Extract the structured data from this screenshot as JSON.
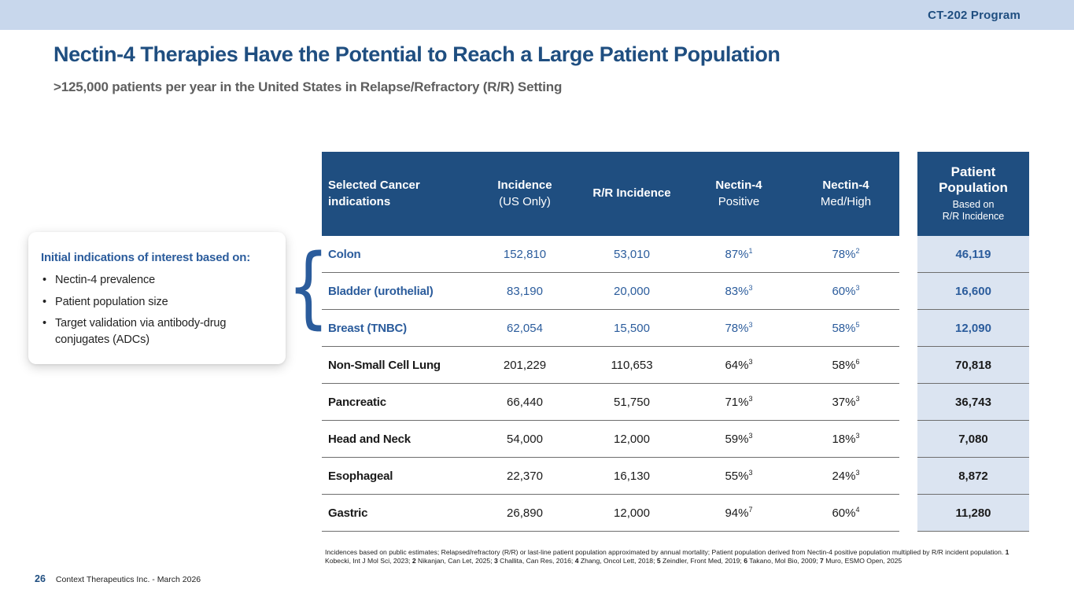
{
  "colors": {
    "dark_blue": "#1f4e80",
    "row_blue": "#2b5c9c",
    "topbar_bg": "#c8d7ec",
    "cell_bg": "#dbe4f1",
    "subtitle_gray": "#5f5f5f",
    "text_black": "#1a1a1a",
    "divider": "#6e6e6e"
  },
  "topbar": {
    "program_label": "CT-202 Program"
  },
  "header": {
    "title": "Nectin-4 Therapies Have the Potential to Reach a Large Patient Population",
    "subtitle": ">125,000 patients per year in the United States in Relapse/Refractory (R/R) Setting"
  },
  "callout": {
    "title": "Initial indications of interest based on:",
    "bullet_glyph": "•",
    "bullets": [
      "Nectin-4 prevalence",
      "Patient population size",
      "Target validation via antibody-drug conjugates (ADCs)"
    ]
  },
  "brace_glyph": "{",
  "table": {
    "columns": [
      {
        "label": "Selected Cancer indications",
        "sub": ""
      },
      {
        "label": "Incidence",
        "sub": "(US Only)"
      },
      {
        "label": "R/R Incidence",
        "sub": ""
      },
      {
        "label": "Nectin-4",
        "sub": "Positive"
      },
      {
        "label": "Nectin-4",
        "sub": "Med/High"
      }
    ],
    "rows": [
      {
        "indication": "Colon",
        "incidence": "152,810",
        "rr_incidence": "53,010",
        "nectin4_positive": "87%",
        "positive_ref": "1",
        "nectin4_medhigh": "78%",
        "medhigh_ref": "2",
        "patient_population": "46,119",
        "highlighted": true
      },
      {
        "indication": "Bladder (urothelial)",
        "incidence": "83,190",
        "rr_incidence": "20,000",
        "nectin4_positive": "83%",
        "positive_ref": "3",
        "nectin4_medhigh": "60%",
        "medhigh_ref": "3",
        "patient_population": "16,600",
        "highlighted": true
      },
      {
        "indication": "Breast (TNBC)",
        "incidence": "62,054",
        "rr_incidence": "15,500",
        "nectin4_positive": "78%",
        "positive_ref": "3",
        "nectin4_medhigh": "58%",
        "medhigh_ref": "5",
        "patient_population": "12,090",
        "highlighted": true
      },
      {
        "indication": "Non-Small Cell Lung",
        "incidence": "201,229",
        "rr_incidence": "110,653",
        "nectin4_positive": "64%",
        "positive_ref": "3",
        "nectin4_medhigh": "58%",
        "medhigh_ref": "6",
        "patient_population": "70,818",
        "highlighted": false
      },
      {
        "indication": "Pancreatic",
        "incidence": "66,440",
        "rr_incidence": "51,750",
        "nectin4_positive": "71%",
        "positive_ref": "3",
        "nectin4_medhigh": "37%",
        "medhigh_ref": "3",
        "patient_population": "36,743",
        "highlighted": false
      },
      {
        "indication": "Head and Neck",
        "incidence": "54,000",
        "rr_incidence": "12,000",
        "nectin4_positive": "59%",
        "positive_ref": "3",
        "nectin4_medhigh": "18%",
        "medhigh_ref": "3",
        "patient_population": "7,080",
        "highlighted": false
      },
      {
        "indication": "Esophageal",
        "incidence": "22,370",
        "rr_incidence": "16,130",
        "nectin4_positive": "55%",
        "positive_ref": "3",
        "nectin4_medhigh": "24%",
        "medhigh_ref": "3",
        "patient_population": "8,872",
        "highlighted": false
      },
      {
        "indication": "Gastric",
        "incidence": "26,890",
        "rr_incidence": "12,000",
        "nectin4_positive": "94%",
        "positive_ref": "7",
        "nectin4_medhigh": "60%",
        "medhigh_ref": "4",
        "patient_population": "11,280",
        "highlighted": false
      }
    ]
  },
  "patient_column": {
    "title": "Patient Population",
    "subtitle_line1": "Based on",
    "subtitle_line2": "R/R Incidence"
  },
  "footnote": {
    "intro": "Incidences based on public estimates; Relapsed/refractory (R/R) or last-line patient population approximated by annual mortality; Patient population derived from Nectin-4 positive population multiplied by R/R incident population.",
    "references": [
      {
        "num": "1",
        "cite": "Kobecki, Int J Mol Sci, 2023"
      },
      {
        "num": "2",
        "cite": "Nikanjan, Can Let, 2025"
      },
      {
        "num": "3",
        "cite": "Challita, Can Res, 2016"
      },
      {
        "num": "4",
        "cite": "Zhang, Oncol Lett, 2018"
      },
      {
        "num": "5",
        "cite": "Zeindler, Front Med, 2019"
      },
      {
        "num": "6",
        "cite": "Takano, Mol Bio, 2009"
      },
      {
        "num": "7",
        "cite": "Muro, ESMO Open, 2025"
      }
    ]
  },
  "footer": {
    "page_number": "26",
    "attribution": "Context Therapeutics Inc. - March 2026"
  }
}
